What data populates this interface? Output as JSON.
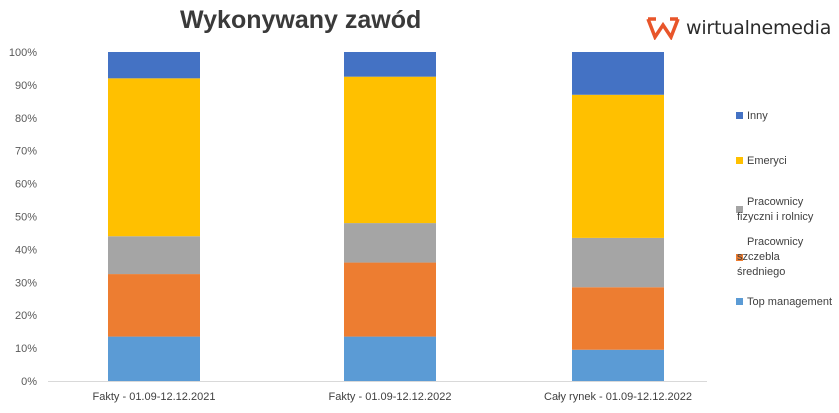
{
  "brand": {
    "name": "wirtualnemedia",
    "accent": "#e8552a"
  },
  "chart_data": {
    "type": "bar",
    "stacked": true,
    "title": "Wykonywany zawód",
    "categories": [
      "Fakty - 01.09-12.12.2021",
      "Fakty - 01.09-12.12.2022",
      "Cały rynek - 01.09-12.12.2022"
    ],
    "ylim": [
      0,
      100
    ],
    "yticks": [
      "0%",
      "10%",
      "20%",
      "30%",
      "40%",
      "50%",
      "60%",
      "70%",
      "80%",
      "90%",
      "100%"
    ],
    "grid": false,
    "legend_position": "right",
    "series": [
      {
        "name": "Top management",
        "color": "#5b9bd5",
        "values": [
          13.5,
          13.5,
          9.5
        ]
      },
      {
        "name": "Pracownicy szczebla średniego",
        "color": "#ed7d31",
        "values": [
          19,
          22.5,
          19
        ]
      },
      {
        "name": "Pracownicy fizyczni i rolnicy",
        "color": "#a5a5a5",
        "values": [
          11.5,
          12,
          15
        ]
      },
      {
        "name": "Emeryci",
        "color": "#ffc000",
        "values": [
          48,
          44.5,
          43.5
        ]
      },
      {
        "name": "Inny",
        "color": "#4472c4",
        "values": [
          8,
          7.5,
          13
        ]
      }
    ]
  }
}
